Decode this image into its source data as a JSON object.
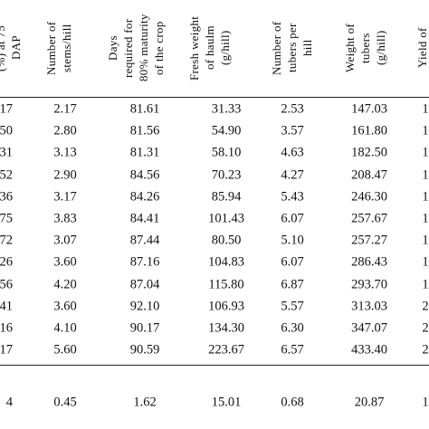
{
  "table": {
    "headers": [
      [
        "(%) at 75",
        "DAP"
      ],
      [
        "Number of",
        "stems/hill"
      ],
      [
        "Days",
        "required for",
        "80% maturity",
        "of the crop"
      ],
      [
        "Fresh weight",
        "of haulm",
        "(g/hill)"
      ],
      [
        "Number of",
        "tubers per",
        "hill"
      ],
      [
        "Weight of",
        "tubers",
        "(g/hill)"
      ],
      [
        "Yield of"
      ]
    ],
    "rows": [
      [
        "17",
        "2.17",
        "81.61",
        "31.33",
        "2.53",
        "147.03",
        "1"
      ],
      [
        "50",
        "2.80",
        "81.56",
        "54.90",
        "3.57",
        "161.80",
        "1"
      ],
      [
        "31",
        "3.13",
        "81.31",
        "58.10",
        "4.63",
        "182.50",
        "1"
      ],
      [
        "52",
        "2.90",
        "84.56",
        "70.23",
        "4.27",
        "208.47",
        "1"
      ],
      [
        "36",
        "3.17",
        "84.26",
        "85.94",
        "5.43",
        "246.30",
        "1"
      ],
      [
        "75",
        "3.83",
        "84.41",
        "101.43",
        "6.07",
        "257.67",
        "1"
      ],
      [
        "72",
        "3.07",
        "87.44",
        "80.50",
        "5.10",
        "257.27",
        "1"
      ],
      [
        "26",
        "3.60",
        "87.16",
        "104.83",
        "6.07",
        "286.43",
        "1"
      ],
      [
        "56",
        "4.20",
        "87.04",
        "115.80",
        "6.87",
        "293.70",
        "1"
      ],
      [
        "41",
        "3.60",
        "92.10",
        "106.93",
        "5.57",
        "313.03",
        "2"
      ],
      [
        "16",
        "4.10",
        "90.17",
        "134.30",
        "6.30",
        "347.07",
        "2"
      ],
      [
        "17",
        "5.60",
        "90.59",
        "223.67",
        "6.57",
        "433.40",
        "2"
      ]
    ],
    "footer_row": [
      "4",
      "0.45",
      "1.62",
      "15.01",
      "0.68",
      "20.87",
      "1"
    ]
  }
}
